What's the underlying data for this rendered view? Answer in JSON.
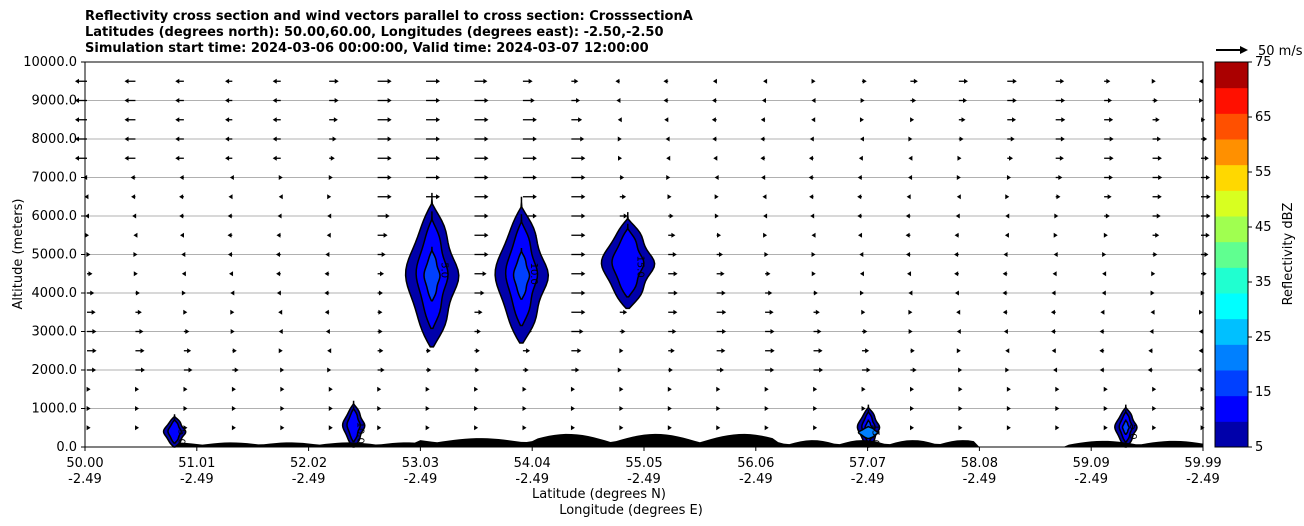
{
  "chart_data": {
    "type": "cross-section",
    "title_lines": [
      "Reflectivity cross section and wind vectors parallel to cross section: CrosssectionA",
      "Latitudes (degrees north): 50.00,60.00, Longitudes (degrees east): -2.50,-2.50",
      "Simulation start time: 2024-03-06 00:00:00, Valid time: 2024-03-07 12:00:00"
    ],
    "ylabel": "Altitude (meters)",
    "xlabel_lat": "Latitude (degrees N)",
    "xlabel_lon": "Longitude (degrees E)",
    "ylim": [
      0,
      10000
    ],
    "xlim": [
      50.0,
      59.99
    ],
    "yticks": [
      "0.0",
      "1000.0",
      "2000.0",
      "3000.0",
      "4000.0",
      "5000.0",
      "6000.0",
      "7000.0",
      "8000.0",
      "9000.0",
      "10000.0"
    ],
    "xticks_lat": [
      "50.00",
      "51.01",
      "52.02",
      "53.03",
      "54.04",
      "55.05",
      "56.06",
      "57.07",
      "58.08",
      "59.09",
      "59.99"
    ],
    "xticks_lon": [
      "-2.49",
      "-2.49",
      "-2.49",
      "-2.49",
      "-2.49",
      "-2.49",
      "-2.49",
      "-2.49",
      "-2.49",
      "-2.49",
      "-2.49"
    ],
    "grid": "horizontal",
    "quiver_key": "50 m/s",
    "colorbar": {
      "label": "Reflectivity dBZ",
      "ticks": [
        "5",
        "15",
        "25",
        "35",
        "45",
        "55",
        "65",
        "75"
      ],
      "levels": [
        5,
        10,
        15,
        20,
        25,
        30,
        35,
        40,
        45,
        50,
        55,
        60,
        65,
        70,
        75
      ],
      "colors": [
        "#0000aa",
        "#0000ff",
        "#0040ff",
        "#0080ff",
        "#00c0ff",
        "#00ffff",
        "#20ffd0",
        "#60ff90",
        "#a0ff50",
        "#d8ff20",
        "#ffd800",
        "#ff9000",
        "#ff5000",
        "#ff1000",
        "#aa0000"
      ]
    },
    "contour_labels": [
      "5.0",
      "10.0",
      "15.0"
    ],
    "cells": [
      {
        "lat": 53.1,
        "alt_low": 2600,
        "alt_high": 6600,
        "max_dbz": 15
      },
      {
        "lat": 53.9,
        "alt_low": 2700,
        "alt_high": 6500,
        "max_dbz": 15
      },
      {
        "lat": 54.85,
        "alt_low": 3600,
        "alt_high": 6100,
        "max_dbz": 10
      },
      {
        "lat": 50.8,
        "alt_low": 0,
        "alt_high": 850,
        "max_dbz": 10
      },
      {
        "lat": 52.4,
        "alt_low": 0,
        "alt_high": 1200,
        "max_dbz": 10
      },
      {
        "lat": 57.0,
        "alt_low": 0,
        "alt_high": 1100,
        "max_dbz": 20
      },
      {
        "lat": 59.3,
        "alt_low": 0,
        "alt_high": 1100,
        "max_dbz": 15
      }
    ]
  }
}
